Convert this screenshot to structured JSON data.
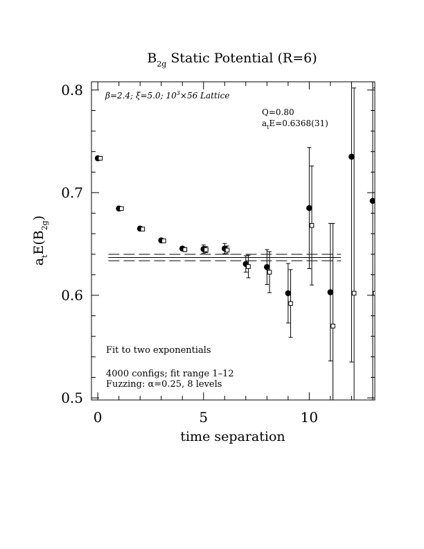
{
  "chart_data": {
    "type": "scatter",
    "title_main": "B",
    "title_sub": "2g",
    "title_rest": " Static Potential (R=6)",
    "xlabel": "time separation",
    "ylabel_pre": "a",
    "ylabel_t": "t",
    "ylabel_mid": "E(B",
    "ylabel_sub": "2g",
    "ylabel_end": ")",
    "xlim": [
      -0.3,
      13.1
    ],
    "ylim": [
      0.498,
      0.808
    ],
    "xticks": [
      0,
      5,
      10
    ],
    "yticks": [
      0.5,
      0.6,
      0.7,
      0.8
    ],
    "ytick_labels": [
      "0.5",
      "0.6",
      "0.7",
      "0.8"
    ],
    "xtick_labels": [
      "0",
      "5",
      "10"
    ],
    "annotations": {
      "lattice_beta": "β=2.4; ",
      "lattice_xi": "ξ=5.0; 10",
      "lattice_exp": "3",
      "lattice_rest": "×56 Lattice",
      "q_value": "Q=0.80",
      "energy_pre": "a",
      "energy_t": "t",
      "energy_rest": "E=0.6368(31)",
      "fit_type": "Fit to two exponentials",
      "configs": "4000 configs; fit range 1–12",
      "fuzzing": "Fuzzing: α=0.25, 8 levels"
    },
    "fit": {
      "value": 0.6368,
      "error": 0.0031,
      "x_start": 0.5,
      "x_end": 11.5
    },
    "series": [
      {
        "name": "",
        "marker": "filled-circle",
        "points": [
          {
            "x": 0,
            "y": 0.7335,
            "err": 0.002
          },
          {
            "x": 1,
            "y": 0.6845,
            "err": 0.002
          },
          {
            "x": 2,
            "y": 0.665,
            "err": 0.002
          },
          {
            "x": 3,
            "y": 0.6535,
            "err": 0.002
          },
          {
            "x": 4,
            "y": 0.6455,
            "err": 0.002
          },
          {
            "x": 5,
            "y": 0.645,
            "err": 0.004
          },
          {
            "x": 6,
            "y": 0.6455,
            "err": 0.005
          },
          {
            "x": 7,
            "y": 0.6305,
            "err": 0.008
          },
          {
            "x": 8,
            "y": 0.6275,
            "err": 0.017
          },
          {
            "x": 9,
            "y": 0.602,
            "err": 0.029
          },
          {
            "x": 10,
            "y": 0.685,
            "err": 0.059
          },
          {
            "x": 11,
            "y": 0.603,
            "err": 0.067
          },
          {
            "x": 12,
            "y": 0.735,
            "err": 0.2
          },
          {
            "x": 13,
            "y": 0.692,
            "err": 0.2
          }
        ]
      },
      {
        "name": "",
        "marker": "open-square",
        "points": [
          {
            "x": 0.12,
            "y": 0.7335,
            "err": 0.0015
          },
          {
            "x": 1.12,
            "y": 0.6845,
            "err": 0.0015
          },
          {
            "x": 2.12,
            "y": 0.6645,
            "err": 0.0015
          },
          {
            "x": 3.12,
            "y": 0.653,
            "err": 0.0015
          },
          {
            "x": 4.12,
            "y": 0.6445,
            "err": 0.002
          },
          {
            "x": 5.12,
            "y": 0.6445,
            "err": 0.003
          },
          {
            "x": 6.12,
            "y": 0.644,
            "err": 0.004
          },
          {
            "x": 7.12,
            "y": 0.628,
            "err": 0.011
          },
          {
            "x": 8.12,
            "y": 0.6225,
            "err": 0.02
          },
          {
            "x": 9.12,
            "y": 0.592,
            "err": 0.033
          },
          {
            "x": 10.12,
            "y": 0.668,
            "err": 0.058
          },
          {
            "x": 11.12,
            "y": 0.57,
            "err": 0.1
          },
          {
            "x": 12.12,
            "y": 0.602,
            "err": 0.2
          },
          {
            "x": 13.12,
            "y": 0.602,
            "err": 0.2
          }
        ]
      }
    ]
  }
}
